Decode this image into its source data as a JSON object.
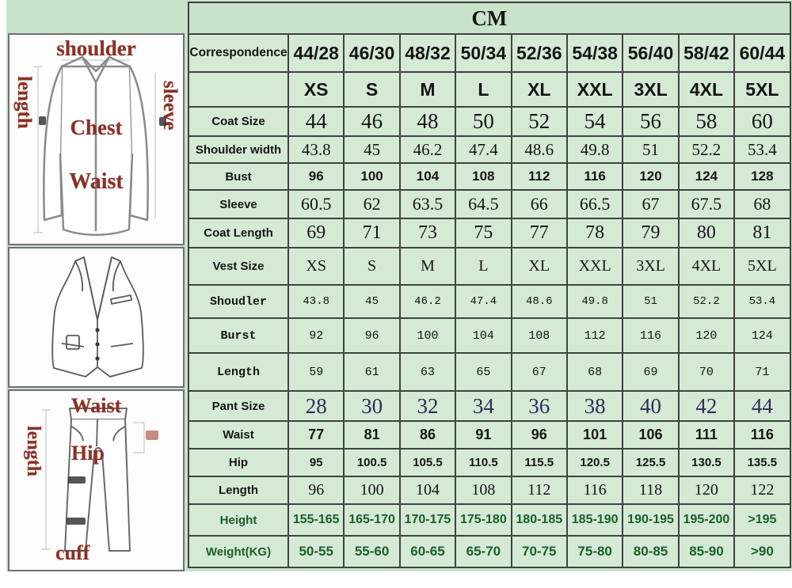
{
  "colors": {
    "background_green": "#c9e3ca",
    "cell_green": "#d4ead5",
    "coat_band_yellow": "#f6f37b",
    "vest_band_orange": "#f0a173",
    "pant_band_purple": "#b49bd6",
    "size_text_red": "#cc2020",
    "correspondence_purple": "#8e2f9e",
    "body_text_green": "#1d5c2a",
    "pant_size_navy": "#2c2c58",
    "label_red": "#8b3126"
  },
  "chart_data": {
    "type": "table",
    "title": "CM",
    "header_row": {
      "label": "Correspondence",
      "values": [
        "44/28",
        "46/30",
        "48/32",
        "50/34",
        "52/36",
        "54/38",
        "56/40",
        "58/42",
        "60/44"
      ]
    },
    "size_row": {
      "label": "",
      "values": [
        "XS",
        "S",
        "M",
        "L",
        "XL",
        "XXL",
        "3XL",
        "4XL",
        "5XL"
      ]
    },
    "rows": [
      {
        "id": "coat-size",
        "label": "Coat Size",
        "values": [
          "44",
          "46",
          "48",
          "50",
          "52",
          "54",
          "56",
          "58",
          "60"
        ]
      },
      {
        "id": "shoulder-width",
        "label": "Shoulder width",
        "values": [
          "43.8",
          "45",
          "46.2",
          "47.4",
          "48.6",
          "49.8",
          "51",
          "52.2",
          "53.4"
        ]
      },
      {
        "id": "bust",
        "label": "Bust",
        "values": [
          "96",
          "100",
          "104",
          "108",
          "112",
          "116",
          "120",
          "124",
          "128"
        ]
      },
      {
        "id": "sleeve",
        "label": "Sleeve",
        "values": [
          "60.5",
          "62",
          "63.5",
          "64.5",
          "66",
          "66.5",
          "67",
          "67.5",
          "68"
        ]
      },
      {
        "id": "coat-length",
        "label": "Coat Length",
        "values": [
          "69",
          "71",
          "73",
          "75",
          "77",
          "78",
          "79",
          "80",
          "81"
        ]
      },
      {
        "id": "vest-size",
        "label": "Vest Size",
        "values": [
          "XS",
          "S",
          "M",
          "L",
          "XL",
          "XXL",
          "3XL",
          "4XL",
          "5XL"
        ]
      },
      {
        "id": "vest-shoulder",
        "label": "Shoudler",
        "values": [
          "43.8",
          "45",
          "46.2",
          "47.4",
          "48.6",
          "49.8",
          "51",
          "52.2",
          "53.4"
        ]
      },
      {
        "id": "vest-bust",
        "label": "Burst",
        "values": [
          "92",
          "96",
          "100",
          "104",
          "108",
          "112",
          "116",
          "120",
          "124"
        ]
      },
      {
        "id": "vest-length",
        "label": "Length",
        "values": [
          "59",
          "61",
          "63",
          "65",
          "67",
          "68",
          "69",
          "70",
          "71"
        ]
      },
      {
        "id": "pant-size",
        "label": "Pant Size",
        "values": [
          "28",
          "30",
          "32",
          "34",
          "36",
          "38",
          "40",
          "42",
          "44"
        ]
      },
      {
        "id": "pant-waist",
        "label": "Waist",
        "values": [
          "77",
          "81",
          "86",
          "91",
          "96",
          "101",
          "106",
          "111",
          "116"
        ]
      },
      {
        "id": "pant-hip",
        "label": "Hip",
        "values": [
          "95",
          "100.5",
          "105.5",
          "110.5",
          "115.5",
          "120.5",
          "125.5",
          "130.5",
          "135.5"
        ]
      },
      {
        "id": "pant-length",
        "label": "Length",
        "values": [
          "96",
          "100",
          "104",
          "108",
          "112",
          "116",
          "118",
          "120",
          "122"
        ]
      },
      {
        "id": "height",
        "label": "Height",
        "values": [
          "155-165",
          "165-170",
          "170-175",
          "175-180",
          "180-185",
          "185-190",
          "190-195",
          "195-200",
          ">195"
        ]
      },
      {
        "id": "weight",
        "label": "Weight(KG)",
        "values": [
          "50-55",
          "55-60",
          "60-65",
          "65-70",
          "70-75",
          "75-80",
          "80-85",
          "85-90",
          ">90"
        ]
      }
    ]
  },
  "diagrams": {
    "jacket": {
      "top_label": "shoulder",
      "left_label": "length",
      "right_label": "sleeve",
      "chest_label": "Chest",
      "waist_label": "Waist"
    },
    "pants": {
      "top_label": "Waist",
      "left_label": "length",
      "hip_label": "Hip",
      "cuff_label": "cuff"
    }
  }
}
